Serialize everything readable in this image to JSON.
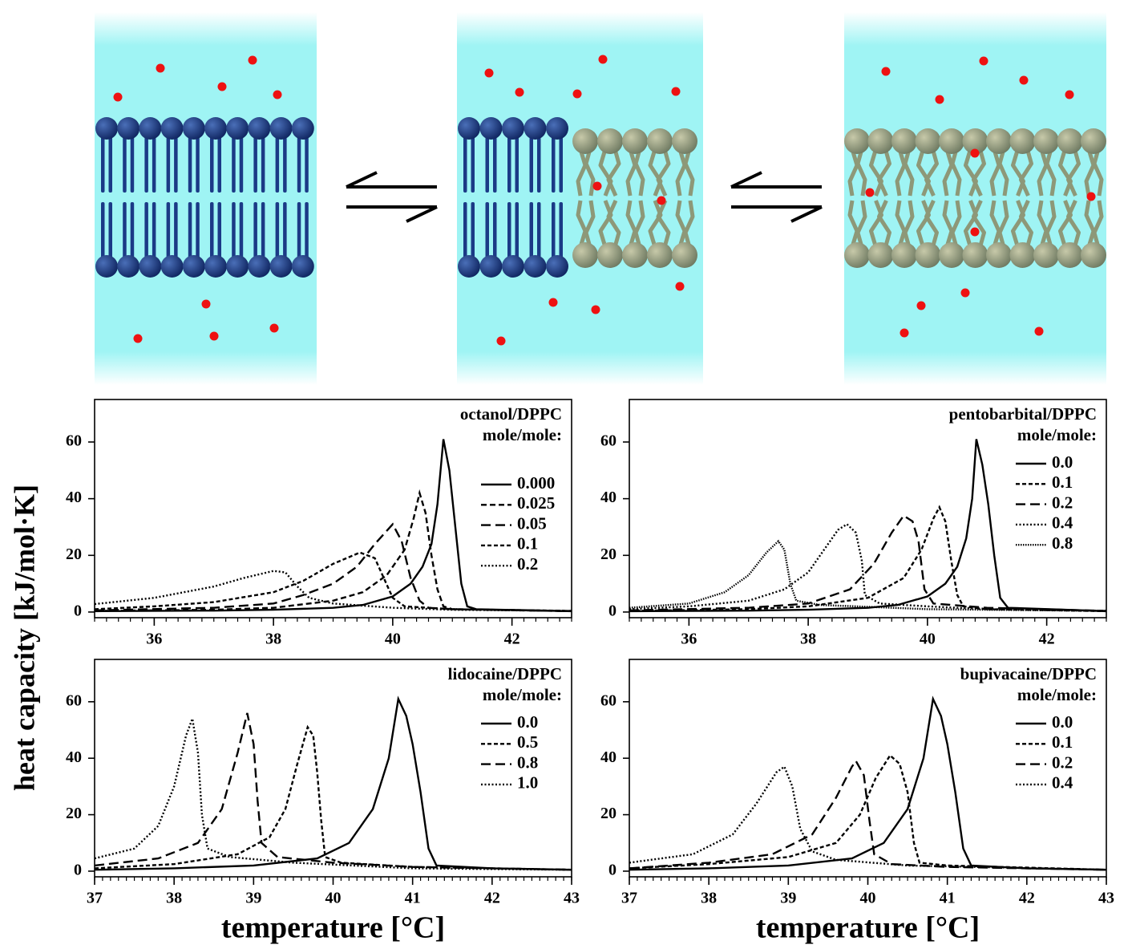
{
  "y_label": "heat capacity [kJ/mol·K]",
  "chart_data": [
    {
      "type": "line",
      "title": "octanol/DPPC",
      "subtitle": "mole/mole:",
      "xlim": [
        35,
        43
      ],
      "xticks": [
        36,
        38,
        40,
        42
      ],
      "xminor_step": 0.2,
      "ylim": [
        -2,
        75
      ],
      "yticks": [
        0,
        20,
        40,
        60
      ],
      "series": [
        {
          "name": "0.000",
          "color": "#000000",
          "dash": "solid",
          "x": [
            35,
            37,
            38,
            39,
            39.5,
            40,
            40.3,
            40.5,
            40.65,
            40.75,
            40.85,
            40.95,
            41.05,
            41.15,
            41.25,
            41.4,
            43
          ],
          "values": [
            0.3,
            0.5,
            0.8,
            1.5,
            2.5,
            5.5,
            10,
            16,
            24,
            38,
            61,
            50,
            30,
            10,
            2,
            1,
            0.3
          ]
        },
        {
          "name": "0.025",
          "color": "#000000",
          "dash": "dashed",
          "x": [
            35,
            37,
            38,
            39,
            39.5,
            39.9,
            40.2,
            40.35,
            40.45,
            40.55,
            40.65,
            40.75,
            40.85,
            41,
            43
          ],
          "values": [
            0.4,
            0.8,
            1.5,
            4,
            7,
            13,
            22,
            33,
            42,
            35,
            20,
            8,
            2,
            1,
            0.3
          ]
        },
        {
          "name": "0.05",
          "color": "#000000",
          "dash": "longdash",
          "x": [
            35,
            37,
            38,
            38.5,
            39,
            39.4,
            39.7,
            40,
            40.15,
            40.3,
            40.45,
            40.6,
            41,
            43
          ],
          "values": [
            0.6,
            1.5,
            3,
            6,
            10,
            16,
            24,
            31,
            25,
            12,
            4,
            1.5,
            1,
            0.3
          ]
        },
        {
          "name": "0.1",
          "color": "#000000",
          "dash": "shortdash",
          "x": [
            35,
            36,
            37,
            38,
            38.5,
            39,
            39.45,
            39.7,
            39.85,
            40,
            40.2,
            41,
            43
          ],
          "values": [
            1,
            2,
            3.5,
            7,
            11,
            17,
            21,
            19,
            12,
            5,
            2,
            1,
            0.4
          ]
        },
        {
          "name": "0.2",
          "color": "#000000",
          "dash": "dotted",
          "x": [
            35,
            36,
            37,
            37.5,
            38,
            38.2,
            38.4,
            38.6,
            39,
            40,
            41,
            43
          ],
          "values": [
            2.8,
            5,
            9,
            12,
            14.5,
            14,
            9,
            5,
            3,
            1.5,
            0.8,
            0.4
          ]
        }
      ]
    },
    {
      "type": "line",
      "title": "pentobarbital/DPPC",
      "subtitle": "mole/mole:",
      "xlim": [
        35,
        43
      ],
      "xticks": [
        36,
        38,
        40,
        42
      ],
      "xminor_step": 0.2,
      "ylim": [
        -2,
        75
      ],
      "yticks": [
        0,
        20,
        40,
        60
      ],
      "series": [
        {
          "name": "0.0",
          "color": "#000000",
          "dash": "solid",
          "x": [
            35,
            37,
            38,
            39,
            39.5,
            40,
            40.3,
            40.5,
            40.65,
            40.75,
            40.82,
            40.92,
            41.02,
            41.12,
            41.22,
            41.35,
            43
          ],
          "values": [
            0.3,
            0.5,
            0.8,
            1.5,
            2.5,
            5.5,
            10,
            16,
            26,
            40,
            61,
            52,
            38,
            20,
            5,
            1.5,
            0.3
          ]
        },
        {
          "name": "0.1",
          "color": "#000000",
          "dash": "shortdash",
          "x": [
            35,
            37,
            38,
            39,
            39.6,
            39.9,
            40.1,
            40.2,
            40.3,
            40.4,
            40.5,
            40.6,
            41,
            43
          ],
          "values": [
            0.4,
            1,
            2,
            5,
            12,
            22,
            33,
            37,
            32,
            18,
            6,
            2,
            1,
            0.3
          ]
        },
        {
          "name": "0.2",
          "color": "#000000",
          "dash": "longdash",
          "x": [
            35,
            37,
            38,
            38.7,
            39.1,
            39.4,
            39.6,
            39.75,
            39.85,
            39.95,
            40.1,
            41,
            43
          ],
          "values": [
            0.6,
            1.5,
            3,
            8,
            17,
            28,
            34,
            32,
            25,
            8,
            3,
            1.5,
            0.4
          ]
        },
        {
          "name": "0.4",
          "color": "#000000",
          "dash": "dotted",
          "x": [
            35,
            36,
            37,
            37.6,
            38,
            38.3,
            38.5,
            38.65,
            38.8,
            38.9,
            38.95,
            39.2,
            40,
            41,
            43
          ],
          "values": [
            1,
            2,
            4,
            8,
            14,
            23,
            29,
            31,
            28,
            18,
            6,
            3,
            2,
            1,
            0.4
          ]
        },
        {
          "name": "0.8",
          "color": "#000000",
          "dash": "densedot",
          "x": [
            35,
            36,
            36.6,
            37,
            37.3,
            37.5,
            37.6,
            37.7,
            37.8,
            38.2,
            40,
            43
          ],
          "values": [
            1.5,
            3,
            7,
            13,
            21,
            25,
            22,
            10,
            4,
            2.5,
            1,
            0.4
          ]
        }
      ]
    },
    {
      "type": "line",
      "title": "lidocaine/DPPC",
      "subtitle": "mole/mole:",
      "x_label": "temperature [°C]",
      "xlim": [
        37,
        43
      ],
      "xticks": [
        37,
        38,
        39,
        40,
        41,
        42,
        43
      ],
      "xminor_step": 0.1,
      "ylim": [
        -2,
        75
      ],
      "yticks": [
        0,
        20,
        40,
        60
      ],
      "series": [
        {
          "name": "0.0",
          "color": "#000000",
          "dash": "solid",
          "x": [
            37,
            38,
            39,
            39.8,
            40.2,
            40.5,
            40.7,
            40.82,
            40.92,
            41,
            41.1,
            41.2,
            41.3,
            42,
            43
          ],
          "values": [
            0.5,
            1,
            2,
            4.5,
            10,
            22,
            40,
            61,
            55,
            45,
            28,
            8,
            2,
            1,
            0.5
          ]
        },
        {
          "name": "0.5",
          "color": "#000000",
          "dash": "shortdash",
          "x": [
            37,
            38,
            38.8,
            39.2,
            39.4,
            39.55,
            39.68,
            39.75,
            39.8,
            39.85,
            39.9,
            40.1,
            41,
            43
          ],
          "values": [
            1,
            2.5,
            6,
            12,
            22,
            38,
            51,
            48,
            35,
            18,
            5,
            3,
            1.5,
            0.5
          ]
        },
        {
          "name": "0.8",
          "color": "#000000",
          "dash": "longdash",
          "x": [
            37,
            37.8,
            38.3,
            38.6,
            38.8,
            38.92,
            39,
            39.05,
            39.1,
            39.3,
            40,
            41,
            43
          ],
          "values": [
            2,
            4.5,
            10,
            22,
            42,
            56,
            45,
            25,
            10,
            5,
            3,
            1.5,
            0.5
          ]
        },
        {
          "name": "1.0",
          "color": "#000000",
          "dash": "dotted",
          "x": [
            37,
            37.5,
            37.8,
            38,
            38.15,
            38.23,
            38.3,
            38.35,
            38.42,
            38.7,
            39.5,
            41,
            43
          ],
          "values": [
            4.5,
            8,
            16,
            30,
            48,
            54,
            42,
            20,
            8,
            5,
            3,
            1,
            0.5
          ]
        }
      ]
    },
    {
      "type": "line",
      "title": "bupivacaine/DPPC",
      "subtitle": "mole/mole:",
      "x_label": "temperature [°C]",
      "xlim": [
        37,
        43
      ],
      "xticks": [
        37,
        38,
        39,
        40,
        41,
        42,
        43
      ],
      "xminor_step": 0.1,
      "ylim": [
        -2,
        75
      ],
      "yticks": [
        0,
        20,
        40,
        60
      ],
      "series": [
        {
          "name": "0.0",
          "color": "#000000",
          "dash": "solid",
          "x": [
            37,
            38,
            39,
            39.8,
            40.2,
            40.5,
            40.7,
            40.82,
            40.92,
            41,
            41.1,
            41.2,
            41.3,
            42,
            43
          ],
          "values": [
            0.5,
            1,
            2,
            4.5,
            10,
            22,
            40,
            61,
            55,
            45,
            28,
            8,
            2,
            1,
            0.5
          ]
        },
        {
          "name": "0.1",
          "color": "#000000",
          "dash": "shortdash",
          "x": [
            37,
            38,
            39,
            39.6,
            39.9,
            40.1,
            40.28,
            40.4,
            40.5,
            40.58,
            40.65,
            41,
            43
          ],
          "values": [
            1,
            2.5,
            5,
            10,
            20,
            33,
            41,
            38,
            28,
            10,
            3,
            2,
            0.5
          ]
        },
        {
          "name": "0.2",
          "color": "#000000",
          "dash": "longdash",
          "x": [
            37,
            38,
            38.8,
            39.3,
            39.6,
            39.8,
            39.85,
            39.95,
            40.02,
            40.08,
            40.3,
            41,
            43
          ],
          "values": [
            1,
            3,
            6,
            13,
            26,
            37,
            39,
            34,
            18,
            6,
            2.5,
            1.5,
            0.5
          ]
        },
        {
          "name": "0.4",
          "color": "#000000",
          "dash": "dotted",
          "x": [
            37,
            37.8,
            38.3,
            38.6,
            38.85,
            38.95,
            39.05,
            39.15,
            39.3,
            39.6,
            40.5,
            43
          ],
          "values": [
            3,
            6,
            13,
            24,
            35,
            37,
            30,
            15,
            7,
            4,
            2,
            0.5
          ]
        }
      ]
    }
  ]
}
